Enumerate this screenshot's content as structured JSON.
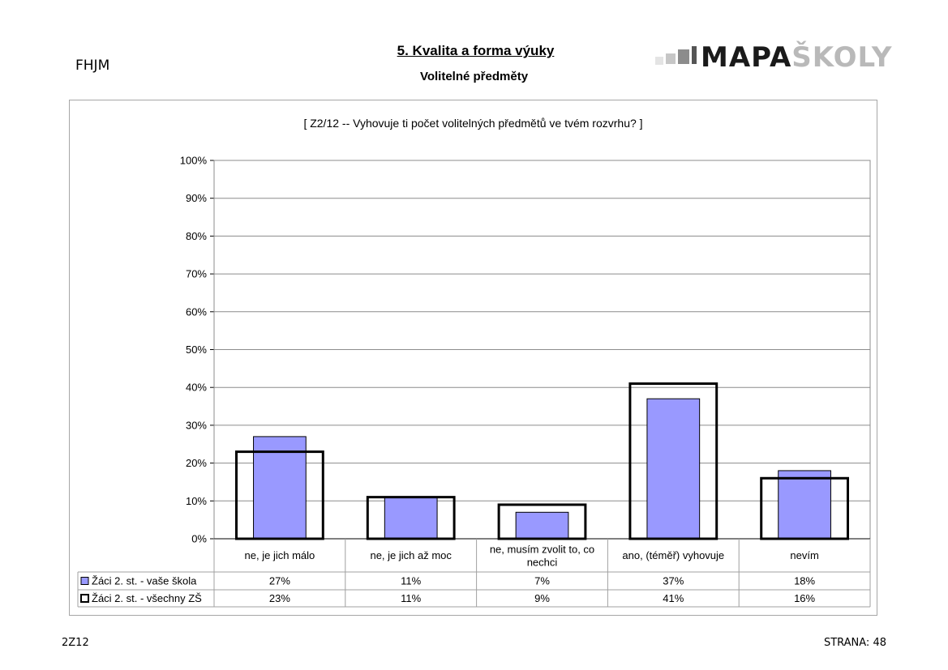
{
  "header": {
    "school_code": "FHJM",
    "title": "5. Kvalita a forma výuky",
    "subtitle": "Volitelné předměty",
    "logo_dark": "MAPA",
    "logo_light": "ŠKOLY"
  },
  "footer": {
    "code": "2Z12",
    "page": "STRANA: 48"
  },
  "chart_data": {
    "type": "bar",
    "title": "[ Z2/12 -- Vyhovuje ti počet volitelných předmětů ve tvém rozvrhu? ]",
    "xlabel": "",
    "ylabel": "",
    "ylim": [
      0,
      100
    ],
    "y_ticks": [
      "0%",
      "10%",
      "20%",
      "30%",
      "40%",
      "50%",
      "60%",
      "70%",
      "80%",
      "90%",
      "100%"
    ],
    "grid": true,
    "legend": "data-table-bottom",
    "categories": [
      "ne, je jich málo",
      "ne, je jich až moc",
      "ne, musím zvolit to, co nechci",
      "ano, (téměř) vyhovuje",
      "nevím"
    ],
    "series": [
      {
        "name": "Žáci 2. st. - vaše škola",
        "values": [
          27,
          11,
          7,
          37,
          18
        ],
        "labels": [
          "27%",
          "11%",
          "7%",
          "37%",
          "18%"
        ],
        "color": "#9999ff",
        "style": "filled"
      },
      {
        "name": "Žáci 2. st. - všechny ZŠ",
        "values": [
          23,
          11,
          9,
          41,
          16
        ],
        "labels": [
          "23%",
          "11%",
          "9%",
          "41%",
          "16%"
        ],
        "color": "#000000",
        "style": "outline"
      }
    ]
  }
}
